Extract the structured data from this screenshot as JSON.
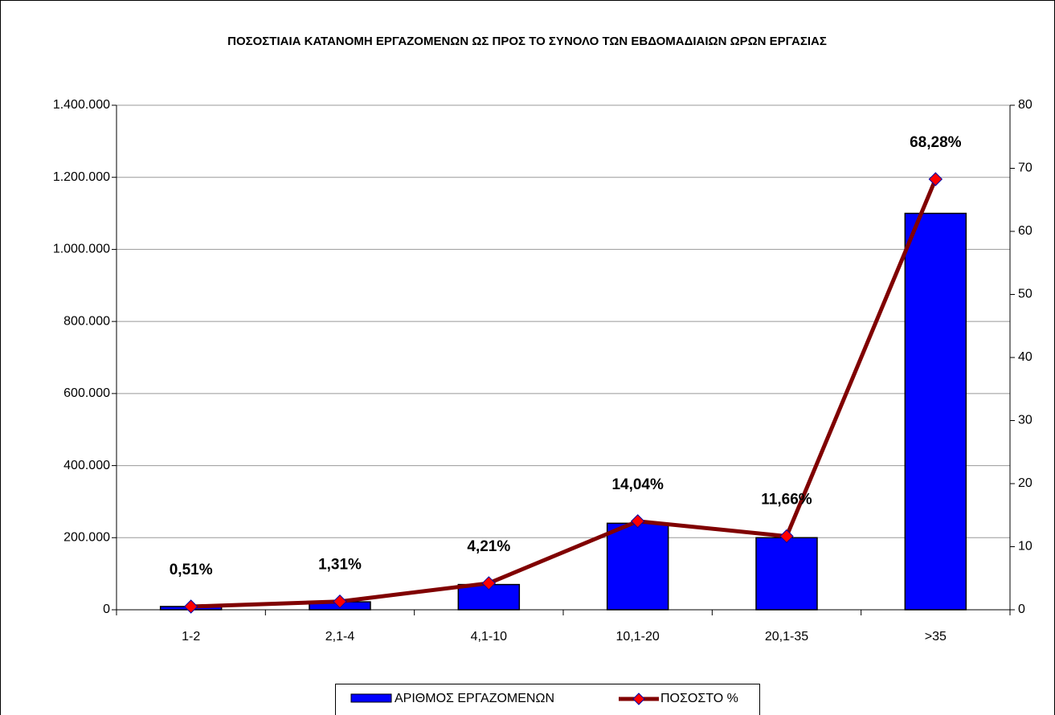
{
  "chart_data": {
    "type": "bar_line",
    "title": "ΠΟΣΟΣΤΙΑΙΑ ΚΑΤΑΝΟΜΗ ΕΡΓΑΖΟΜΕΝΩΝ ΩΣ ΠΡΟΣ ΤΟ ΣΥΝΟΛΟ ΤΩΝ ΕΒΔΟΜΑΔΙΑΙΩΝ ΩΡΩΝ ΕΡΓΑΣΙΑΣ",
    "categories": [
      "1-2",
      "2,1-4",
      "4,1-10",
      "10,1-20",
      "20,1-35",
      ">35"
    ],
    "series": [
      {
        "name": "ΑΡΙΘΜΟΣ ΕΡΓΑΖΟΜΕΝΩΝ",
        "type": "bar",
        "color": "#0000ff",
        "values": [
          9000,
          22000,
          70000,
          240000,
          200000,
          1100000
        ]
      },
      {
        "name": "ΠΟΣΟΣΤΟ %",
        "type": "line",
        "axis": "y2",
        "color": "#800000",
        "marker_color": "#ff0000",
        "values": [
          0.51,
          1.31,
          4.21,
          14.04,
          11.66,
          68.28
        ],
        "value_labels": [
          "0,51%",
          "1,31%",
          "4,21%",
          "14,04%",
          "11,66%",
          "68,28%"
        ],
        "label_color": "#ff0000"
      }
    ],
    "ylim": [
      0,
      1400000
    ],
    "yticks": [
      0,
      {
        "value": 200000,
        "label": "200.000"
      },
      {
        "value": 400000,
        "label": "400.000"
      },
      {
        "value": 600000,
        "label": "600.000"
      },
      {
        "value": 800000,
        "label": "800.000"
      },
      {
        "value": 1000000,
        "label": "1.000.000"
      },
      {
        "value": 1200000,
        "label": "1.200.000"
      },
      {
        "value": 1400000,
        "label": "1.400.000"
      }
    ],
    "y2lim": [
      0,
      80
    ],
    "y2ticks": [
      0,
      10,
      20,
      30,
      40,
      50,
      60,
      70,
      80
    ],
    "grid": true,
    "legend": "bottom"
  }
}
